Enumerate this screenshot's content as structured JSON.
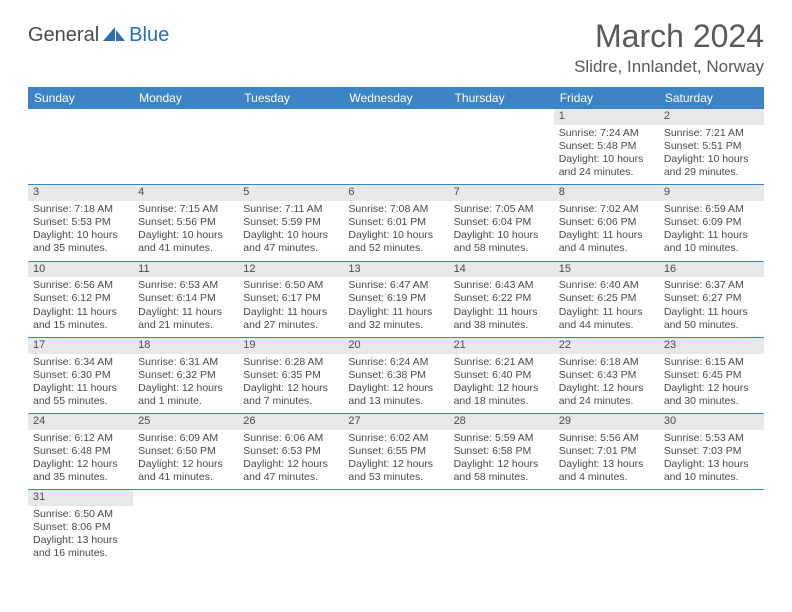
{
  "logo": {
    "word1": "General",
    "word2": "Blue"
  },
  "header": {
    "title": "March 2024",
    "location": "Slidre, Innlandet, Norway"
  },
  "colors": {
    "header_bg": "#3d84c6",
    "header_text": "#ffffff",
    "row_divider": "#3d84c6",
    "daynum_bg": "#e8e8e8",
    "body_text": "#4a4a4a",
    "logo_blue": "#2a6fb5"
  },
  "dayHeaders": [
    "Sunday",
    "Monday",
    "Tuesday",
    "Wednesday",
    "Thursday",
    "Friday",
    "Saturday"
  ],
  "weeks": [
    [
      null,
      null,
      null,
      null,
      null,
      {
        "n": "1",
        "sr": "Sunrise: 7:24 AM",
        "ss": "Sunset: 5:48 PM",
        "d1": "Daylight: 10 hours",
        "d2": "and 24 minutes."
      },
      {
        "n": "2",
        "sr": "Sunrise: 7:21 AM",
        "ss": "Sunset: 5:51 PM",
        "d1": "Daylight: 10 hours",
        "d2": "and 29 minutes."
      }
    ],
    [
      {
        "n": "3",
        "sr": "Sunrise: 7:18 AM",
        "ss": "Sunset: 5:53 PM",
        "d1": "Daylight: 10 hours",
        "d2": "and 35 minutes."
      },
      {
        "n": "4",
        "sr": "Sunrise: 7:15 AM",
        "ss": "Sunset: 5:56 PM",
        "d1": "Daylight: 10 hours",
        "d2": "and 41 minutes."
      },
      {
        "n": "5",
        "sr": "Sunrise: 7:11 AM",
        "ss": "Sunset: 5:59 PM",
        "d1": "Daylight: 10 hours",
        "d2": "and 47 minutes."
      },
      {
        "n": "6",
        "sr": "Sunrise: 7:08 AM",
        "ss": "Sunset: 6:01 PM",
        "d1": "Daylight: 10 hours",
        "d2": "and 52 minutes."
      },
      {
        "n": "7",
        "sr": "Sunrise: 7:05 AM",
        "ss": "Sunset: 6:04 PM",
        "d1": "Daylight: 10 hours",
        "d2": "and 58 minutes."
      },
      {
        "n": "8",
        "sr": "Sunrise: 7:02 AM",
        "ss": "Sunset: 6:06 PM",
        "d1": "Daylight: 11 hours",
        "d2": "and 4 minutes."
      },
      {
        "n": "9",
        "sr": "Sunrise: 6:59 AM",
        "ss": "Sunset: 6:09 PM",
        "d1": "Daylight: 11 hours",
        "d2": "and 10 minutes."
      }
    ],
    [
      {
        "n": "10",
        "sr": "Sunrise: 6:56 AM",
        "ss": "Sunset: 6:12 PM",
        "d1": "Daylight: 11 hours",
        "d2": "and 15 minutes."
      },
      {
        "n": "11",
        "sr": "Sunrise: 6:53 AM",
        "ss": "Sunset: 6:14 PM",
        "d1": "Daylight: 11 hours",
        "d2": "and 21 minutes."
      },
      {
        "n": "12",
        "sr": "Sunrise: 6:50 AM",
        "ss": "Sunset: 6:17 PM",
        "d1": "Daylight: 11 hours",
        "d2": "and 27 minutes."
      },
      {
        "n": "13",
        "sr": "Sunrise: 6:47 AM",
        "ss": "Sunset: 6:19 PM",
        "d1": "Daylight: 11 hours",
        "d2": "and 32 minutes."
      },
      {
        "n": "14",
        "sr": "Sunrise: 6:43 AM",
        "ss": "Sunset: 6:22 PM",
        "d1": "Daylight: 11 hours",
        "d2": "and 38 minutes."
      },
      {
        "n": "15",
        "sr": "Sunrise: 6:40 AM",
        "ss": "Sunset: 6:25 PM",
        "d1": "Daylight: 11 hours",
        "d2": "and 44 minutes."
      },
      {
        "n": "16",
        "sr": "Sunrise: 6:37 AM",
        "ss": "Sunset: 6:27 PM",
        "d1": "Daylight: 11 hours",
        "d2": "and 50 minutes."
      }
    ],
    [
      {
        "n": "17",
        "sr": "Sunrise: 6:34 AM",
        "ss": "Sunset: 6:30 PM",
        "d1": "Daylight: 11 hours",
        "d2": "and 55 minutes."
      },
      {
        "n": "18",
        "sr": "Sunrise: 6:31 AM",
        "ss": "Sunset: 6:32 PM",
        "d1": "Daylight: 12 hours",
        "d2": "and 1 minute."
      },
      {
        "n": "19",
        "sr": "Sunrise: 6:28 AM",
        "ss": "Sunset: 6:35 PM",
        "d1": "Daylight: 12 hours",
        "d2": "and 7 minutes."
      },
      {
        "n": "20",
        "sr": "Sunrise: 6:24 AM",
        "ss": "Sunset: 6:38 PM",
        "d1": "Daylight: 12 hours",
        "d2": "and 13 minutes."
      },
      {
        "n": "21",
        "sr": "Sunrise: 6:21 AM",
        "ss": "Sunset: 6:40 PM",
        "d1": "Daylight: 12 hours",
        "d2": "and 18 minutes."
      },
      {
        "n": "22",
        "sr": "Sunrise: 6:18 AM",
        "ss": "Sunset: 6:43 PM",
        "d1": "Daylight: 12 hours",
        "d2": "and 24 minutes."
      },
      {
        "n": "23",
        "sr": "Sunrise: 6:15 AM",
        "ss": "Sunset: 6:45 PM",
        "d1": "Daylight: 12 hours",
        "d2": "and 30 minutes."
      }
    ],
    [
      {
        "n": "24",
        "sr": "Sunrise: 6:12 AM",
        "ss": "Sunset: 6:48 PM",
        "d1": "Daylight: 12 hours",
        "d2": "and 35 minutes."
      },
      {
        "n": "25",
        "sr": "Sunrise: 6:09 AM",
        "ss": "Sunset: 6:50 PM",
        "d1": "Daylight: 12 hours",
        "d2": "and 41 minutes."
      },
      {
        "n": "26",
        "sr": "Sunrise: 6:06 AM",
        "ss": "Sunset: 6:53 PM",
        "d1": "Daylight: 12 hours",
        "d2": "and 47 minutes."
      },
      {
        "n": "27",
        "sr": "Sunrise: 6:02 AM",
        "ss": "Sunset: 6:55 PM",
        "d1": "Daylight: 12 hours",
        "d2": "and 53 minutes."
      },
      {
        "n": "28",
        "sr": "Sunrise: 5:59 AM",
        "ss": "Sunset: 6:58 PM",
        "d1": "Daylight: 12 hours",
        "d2": "and 58 minutes."
      },
      {
        "n": "29",
        "sr": "Sunrise: 5:56 AM",
        "ss": "Sunset: 7:01 PM",
        "d1": "Daylight: 13 hours",
        "d2": "and 4 minutes."
      },
      {
        "n": "30",
        "sr": "Sunrise: 5:53 AM",
        "ss": "Sunset: 7:03 PM",
        "d1": "Daylight: 13 hours",
        "d2": "and 10 minutes."
      }
    ],
    [
      {
        "n": "31",
        "sr": "Sunrise: 6:50 AM",
        "ss": "Sunset: 8:06 PM",
        "d1": "Daylight: 13 hours",
        "d2": "and 16 minutes."
      },
      null,
      null,
      null,
      null,
      null,
      null
    ]
  ]
}
